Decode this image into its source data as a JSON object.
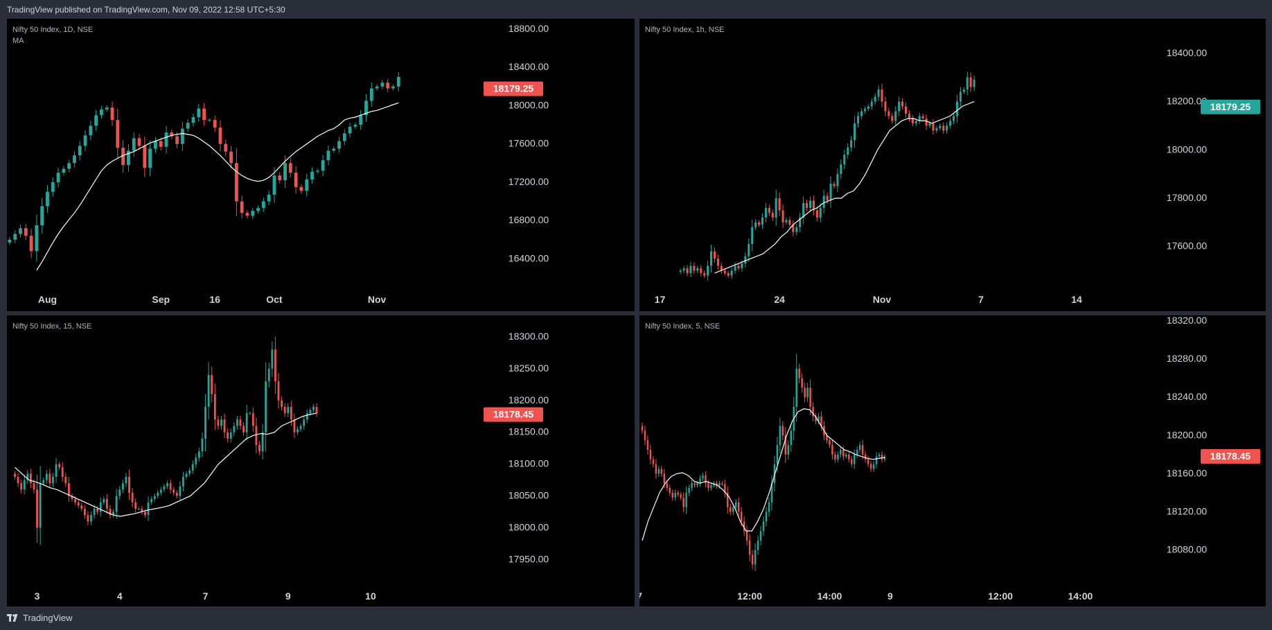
{
  "header": {
    "publish_note": "TradingView published on TradingView.com, Nov 09, 2022 12:58 UTC+5:30"
  },
  "footer": {
    "brand": "TradingView"
  },
  "colors": {
    "up": "#26a69a",
    "down": "#ef5350",
    "ma": "#ffffff",
    "background": "#000000",
    "frame": "#2a2e39",
    "axis_text": "#d1d4dc"
  },
  "chart_data": [
    {
      "type": "candlestick",
      "symbol": "Nifty 50 Index",
      "interval": "1D",
      "exchange": "NSE",
      "indicator": "MA",
      "ylim": [
        16150,
        18850
      ],
      "y_ticks": [
        "16400.00",
        "16800.00",
        "17200.00",
        "17600.00",
        "18000.00",
        "18400.00",
        "18800.00"
      ],
      "x_ticks": [
        {
          "index": 7,
          "label": "Aug"
        },
        {
          "index": 28,
          "label": "Sep"
        },
        {
          "index": 38,
          "label": "16"
        },
        {
          "index": 49,
          "label": "Oct"
        },
        {
          "index": 68,
          "label": "Nov"
        }
      ],
      "x_range": [
        -0.5,
        88
      ],
      "last_price": "18179.25",
      "last_price_color": "down",
      "close": [
        16600,
        16660,
        16720,
        16640,
        16480,
        16750,
        16950,
        17100,
        17200,
        17300,
        17340,
        17400,
        17480,
        17580,
        17690,
        17790,
        17900,
        17960,
        17980,
        17850,
        17560,
        17380,
        17530,
        17660,
        17580,
        17350,
        17550,
        17630,
        17570,
        17720,
        17680,
        17600,
        17760,
        17820,
        17880,
        17970,
        17850,
        17850,
        17770,
        17600,
        17520,
        17400,
        17000,
        16880,
        16850,
        16900,
        16930,
        17000,
        17070,
        17270,
        17220,
        17400,
        17300,
        17150,
        17110,
        17230,
        17310,
        17320,
        17430,
        17530,
        17550,
        17630,
        17710,
        17780,
        17800,
        17900,
        18050,
        18180,
        18200,
        18240,
        18180,
        18200,
        18300
      ],
      "ma": {
        "start": 5,
        "values": [
          16280,
          16370,
          16470,
          16570,
          16660,
          16740,
          16810,
          16880,
          16960,
          17050,
          17140,
          17230,
          17320,
          17380,
          17420,
          17450,
          17480,
          17500,
          17520,
          17550,
          17580,
          17610,
          17630,
          17650,
          17670,
          17690,
          17700,
          17710,
          17700,
          17690,
          17660,
          17620,
          17580,
          17530,
          17480,
          17420,
          17360,
          17310,
          17270,
          17240,
          17220,
          17210,
          17220,
          17250,
          17300,
          17360,
          17420,
          17470,
          17520,
          17560,
          17600,
          17640,
          17680,
          17710,
          17740,
          17760,
          17800,
          17850,
          17870,
          17880,
          17900,
          17920,
          17940,
          17950,
          17970,
          17990,
          18010,
          18030
        ]
      }
    },
    {
      "type": "candlestick",
      "symbol": "Nifty 50 Index",
      "interval": "1h",
      "exchange": "NSE",
      "ylim": [
        17450,
        18520
      ],
      "y_ticks": [
        "17600.00",
        "17800.00",
        "18000.00",
        "18200.00",
        "18400.00"
      ],
      "x_ticks": [
        {
          "index": -6,
          "label": "17"
        },
        {
          "index": 29,
          "label": "24"
        },
        {
          "index": 59,
          "label": "Nov"
        },
        {
          "index": 88,
          "label": "7"
        },
        {
          "index": 116,
          "label": "14"
        }
      ],
      "x_range": [
        -12,
        130
      ],
      "last_price": "18179.25",
      "last_price_color": "up",
      "close": [
        17500,
        17510,
        17490,
        17520,
        17500,
        17510,
        17490,
        17480,
        17520,
        17580,
        17550,
        17520,
        17500,
        17490,
        17480,
        17500,
        17520,
        17510,
        17530,
        17560,
        17610,
        17680,
        17700,
        17690,
        17720,
        17760,
        17740,
        17720,
        17800,
        17750,
        17700,
        17710,
        17690,
        17660,
        17680,
        17720,
        17780,
        17760,
        17790,
        17750,
        17720,
        17760,
        17810,
        17790,
        17860,
        17850,
        17900,
        17940,
        17980,
        18010,
        18040,
        18110,
        18140,
        18160,
        18170,
        18180,
        18200,
        18220,
        18250,
        18200,
        18160,
        18140,
        18120,
        18160,
        18200,
        18180,
        18150,
        18130,
        18110,
        18120,
        18140,
        18130,
        18100,
        18110,
        18080,
        18090,
        18100,
        18080,
        18100,
        18120,
        18140,
        18200,
        18240,
        18250,
        18300,
        18260,
        18290
      ],
      "ma": {
        "start": 10,
        "values": [
          17490,
          17500,
          17510,
          17520,
          17530,
          17540,
          17550,
          17560,
          17570,
          17590,
          17610,
          17640,
          17660,
          17690,
          17710,
          17730,
          17750,
          17760,
          17780,
          17790,
          17800,
          17800,
          17820,
          17830,
          17860,
          17900,
          17950,
          18000,
          18040,
          18080,
          18100,
          18120,
          18130,
          18130,
          18120,
          18120,
          18110,
          18120,
          18130,
          18140,
          18160,
          18180,
          18190,
          18200
        ]
      }
    },
    {
      "type": "candlestick",
      "symbol": "Nifty 50 Index",
      "interval": "15",
      "exchange": "NSE",
      "ylim": [
        17920,
        18325
      ],
      "y_ticks": [
        "17950.00",
        "18000.00",
        "18050.00",
        "18100.00",
        "18150.00",
        "18200.00",
        "18250.00",
        "18300.00"
      ],
      "x_ticks": [
        {
          "index": 7,
          "label": "3"
        },
        {
          "index": 33,
          "label": "4"
        },
        {
          "index": 60,
          "label": "7"
        },
        {
          "index": 86,
          "label": "9"
        },
        {
          "index": 112,
          "label": "10"
        }
      ],
      "x_range": [
        -2.5,
        148
      ],
      "last_price": "18178.45",
      "last_price_color": "down",
      "close": [
        18080,
        18070,
        18060,
        18075,
        18085,
        18070,
        18060,
        18000,
        18070,
        18075,
        18085,
        18070,
        18080,
        18100,
        18095,
        18080,
        18070,
        18050,
        18045,
        18040,
        18035,
        18030,
        18020,
        18010,
        18020,
        18030,
        18025,
        18040,
        18045,
        18030,
        18020,
        18025,
        18050,
        18060,
        18070,
        18080,
        18055,
        18040,
        18030,
        18030,
        18025,
        18020,
        18040,
        18045,
        18050,
        18055,
        18060,
        18065,
        18070,
        18060,
        18055,
        18050,
        18065,
        18080,
        18085,
        18090,
        18100,
        18110,
        18120,
        18140,
        18190,
        18240,
        18210,
        18170,
        18160,
        18170,
        18150,
        18140,
        18150,
        18160,
        18170,
        18160,
        18150,
        18180,
        18180,
        18160,
        18130,
        18120,
        18150,
        18230,
        18250,
        18280,
        18230,
        18200,
        18190,
        18180,
        18190,
        18170,
        18150,
        18155,
        18160,
        18170,
        18180,
        18185,
        18190,
        18180
      ],
      "ma": {
        "start": 0,
        "values": [
          18095,
          18085,
          18075,
          18072,
          18068,
          18063,
          18060,
          18055,
          18050,
          18045,
          18040,
          18035,
          18030,
          18025,
          18020,
          18018,
          18020,
          18022,
          18025,
          18028,
          18030,
          18032,
          18035,
          18040,
          18045,
          18050,
          18060,
          18070,
          18085,
          18100,
          18110,
          18120,
          18130,
          18140,
          18145,
          18148,
          18147,
          18150,
          18160,
          18165,
          18170,
          18175,
          18178,
          18180
        ]
      }
    },
    {
      "type": "candlestick",
      "symbol": "Nifty 50 Index",
      "interval": "5",
      "exchange": "NSE",
      "ylim": [
        18050,
        18320
      ],
      "y_ticks": [
        "18080.00",
        "18120.00",
        "18160.00",
        "18200.00",
        "18240.00",
        "18280.00",
        "18320.00"
      ],
      "x_ticks": [
        {
          "index": -1,
          "label": "7"
        },
        {
          "index": 39,
          "label": "12:00"
        },
        {
          "index": 68,
          "label": "14:00"
        },
        {
          "index": 90,
          "label": "9"
        },
        {
          "index": 130,
          "label": "12:00"
        },
        {
          "index": 159,
          "label": "14:00"
        }
      ],
      "x_range": [
        -1,
        175
      ],
      "last_price": "18178.45",
      "last_price_color": "down",
      "close": [
        18205,
        18195,
        18185,
        18175,
        18170,
        18160,
        18165,
        18160,
        18150,
        18145,
        18140,
        18135,
        18140,
        18138,
        18135,
        18125,
        18140,
        18145,
        18150,
        18148,
        18150,
        18155,
        18158,
        18150,
        18145,
        18148,
        18150,
        18147,
        18150,
        18149,
        18140,
        18125,
        18120,
        18125,
        18130,
        18120,
        18110,
        18100,
        18090,
        18075,
        18065,
        18080,
        18090,
        18100,
        18110,
        18120,
        18130,
        18150,
        18170,
        18190,
        18210,
        18200,
        18180,
        18190,
        18205,
        18230,
        18270,
        18260,
        18250,
        18240,
        18250,
        18230,
        18220,
        18215,
        18220,
        18210,
        18200,
        18195,
        18190,
        18180,
        18175,
        18180,
        18185,
        18178,
        18180,
        18175,
        18170,
        18180,
        18185,
        18190,
        18180,
        18175,
        18170,
        18165,
        18170,
        18178,
        18180,
        18175,
        18178
      ],
      "ma": {
        "start": 0,
        "values": [
          18090,
          18110,
          18125,
          18140,
          18150,
          18157,
          18160,
          18161,
          18158,
          18152,
          18150,
          18152,
          18150,
          18148,
          18143,
          18136,
          18125,
          18110,
          18100,
          18100,
          18110,
          18123,
          18140,
          18160,
          18180,
          18200,
          18215,
          18225,
          18228,
          18227,
          18220,
          18210,
          18200,
          18195,
          18190,
          18185,
          18183,
          18180,
          18178,
          18176,
          18175,
          18176,
          18177
        ]
      }
    }
  ]
}
